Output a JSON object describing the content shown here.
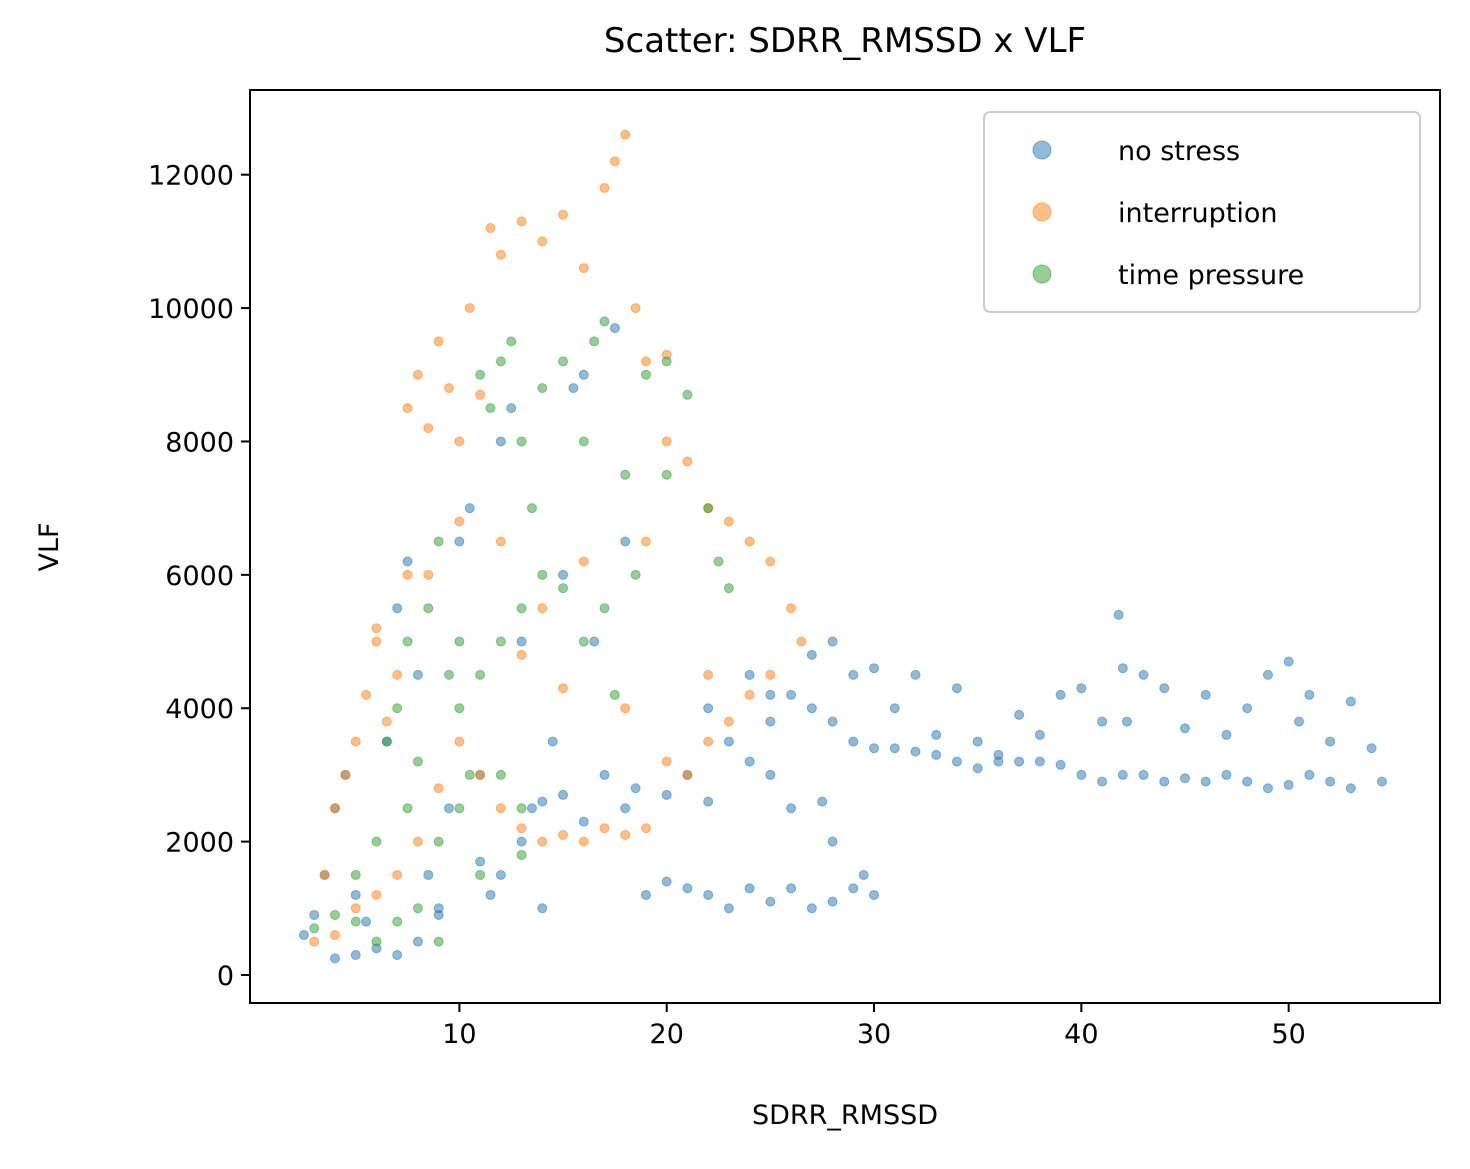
{
  "chart_data": {
    "type": "scatter",
    "title": "Scatter: SDRR_RMSSD x VLF",
    "x_label": "SDRR_RMSSD",
    "y_label": "VLF",
    "xlim": [
      -0.1,
      57.3
    ],
    "ylim": [
      -420,
      13270
    ],
    "xticks": [
      10,
      20,
      30,
      40,
      50
    ],
    "yticks": [
      0,
      2000,
      4000,
      6000,
      8000,
      10000,
      12000
    ],
    "legend": "upper right",
    "series": [
      {
        "name": "no stress",
        "color": "#1f77b4",
        "x": [
          2.5,
          3,
          3.5,
          4,
          4.5,
          5,
          5.5,
          6,
          6.5,
          7,
          7.5,
          8,
          8.5,
          9,
          9.5,
          10,
          10.5,
          11,
          11.5,
          12,
          12.5,
          13,
          13.5,
          14,
          14.5,
          15,
          15.5,
          16,
          16.5,
          17,
          17.5,
          18,
          18.5,
          19,
          20,
          21,
          21,
          22,
          23,
          24,
          25,
          26,
          27,
          28,
          29,
          30,
          29.5,
          28,
          27.5,
          26,
          25,
          24,
          23,
          22,
          25,
          27,
          28,
          29,
          30,
          31,
          32,
          33,
          34,
          35,
          36,
          37,
          38,
          39,
          40,
          41,
          41.8,
          42,
          42.2,
          43,
          44,
          45,
          46,
          47,
          48,
          49,
          50,
          50.5,
          51,
          52,
          53,
          54,
          54.5,
          53,
          52,
          51,
          50,
          49,
          48,
          47,
          46,
          45,
          44,
          43,
          42,
          41,
          40,
          39,
          38,
          37,
          36,
          35,
          34,
          33,
          32,
          31,
          30,
          29,
          28,
          27,
          26,
          25,
          24,
          22,
          20,
          18,
          16,
          15,
          14,
          13,
          12,
          11,
          9,
          8,
          7,
          5,
          4
        ],
        "values": [
          600,
          900,
          1500,
          2500,
          3000,
          1200,
          800,
          400,
          3500,
          5500,
          6200,
          4500,
          1500,
          900,
          2500,
          6500,
          7000,
          3000,
          1200,
          8000,
          8500,
          5000,
          2500,
          1000,
          3500,
          6000,
          8800,
          9000,
          5000,
          3000,
          9700,
          6500,
          2800,
          1200,
          1400,
          3000,
          1300,
          1200,
          1000,
          1300,
          1100,
          1300,
          1000,
          1100,
          1300,
          1200,
          1500,
          2000,
          2600,
          2500,
          3000,
          4500,
          3500,
          4000,
          4200,
          4800,
          5000,
          4500,
          4600,
          4000,
          4500,
          3600,
          4300,
          3500,
          3300,
          3900,
          3600,
          4200,
          4300,
          3800,
          5400,
          4600,
          3800,
          4500,
          4300,
          3700,
          4200,
          3600,
          4000,
          4500,
          4700,
          3800,
          4200,
          3500,
          4100,
          3400,
          2900,
          2800,
          2900,
          3000,
          2850,
          2800,
          2900,
          3000,
          2900,
          2950,
          2900,
          3000,
          3000,
          2900,
          3000,
          3150,
          3200,
          3200,
          3200,
          3100,
          3200,
          3300,
          3350,
          3400,
          3400,
          3500,
          3800,
          4000,
          4200,
          3800,
          3200,
          2600,
          2700,
          2500,
          2300,
          2700,
          2600,
          2000,
          1500,
          1700,
          1000,
          500,
          300,
          300,
          250
        ]
      },
      {
        "name": "interruption",
        "color": "#ff7f0e",
        "x": [
          3,
          3.5,
          4,
          4.5,
          5,
          5.5,
          6,
          6.5,
          7,
          7.5,
          7.5,
          8,
          8.5,
          9,
          9.5,
          10,
          10.5,
          11,
          11.5,
          12,
          13,
          14,
          15,
          16,
          17,
          17.5,
          18,
          18.5,
          19,
          20,
          20,
          21,
          22,
          23,
          24,
          25,
          26,
          26.5,
          25,
          24,
          23,
          22,
          21,
          20,
          19,
          18,
          17,
          16,
          15,
          14,
          13,
          12,
          11,
          10,
          9,
          8,
          7,
          6,
          5,
          4,
          6,
          12,
          14,
          16,
          18,
          22,
          15,
          13,
          8.5,
          10,
          19
        ],
        "values": [
          500,
          1500,
          2500,
          3000,
          3500,
          4200,
          5000,
          3800,
          4500,
          6000,
          8500,
          9000,
          8200,
          9500,
          8800,
          8000,
          10000,
          8700,
          11200,
          10800,
          11300,
          11000,
          11400,
          10600,
          11800,
          12200,
          12600,
          10000,
          9200,
          8000,
          9300,
          7700,
          7000,
          6800,
          6500,
          6200,
          5500,
          5000,
          4500,
          4200,
          3800,
          3500,
          3000,
          3200,
          2200,
          2100,
          2200,
          2000,
          2100,
          2000,
          2200,
          2500,
          3000,
          3500,
          2800,
          2000,
          1500,
          1200,
          1000,
          600,
          5200,
          6500,
          5500,
          6200,
          4000,
          4500,
          4300,
          4800,
          6000,
          6800,
          6500
        ]
      },
      {
        "name": "time pressure",
        "color": "#2ca02c",
        "x": [
          3,
          4,
          5,
          6,
          6.5,
          7,
          7.5,
          8,
          8.5,
          9,
          9.5,
          10,
          10.5,
          11,
          11.5,
          12,
          12.5,
          13,
          13.5,
          14,
          15,
          16,
          16.5,
          17,
          18,
          19,
          20,
          21,
          22,
          22.5,
          23,
          20,
          18.5,
          17,
          16,
          15,
          14,
          13,
          12,
          11,
          12,
          13,
          13,
          11,
          10,
          9,
          8,
          7,
          6,
          9,
          5,
          7.5,
          10,
          17.5
        ],
        "values": [
          700,
          900,
          1500,
          2000,
          3500,
          4000,
          5000,
          3200,
          5500,
          6500,
          4500,
          5000,
          3000,
          9000,
          8500,
          9200,
          9500,
          8000,
          7000,
          8800,
          9200,
          8000,
          9500,
          9800,
          7500,
          9000,
          9200,
          8700,
          7000,
          6200,
          5800,
          7500,
          6000,
          5500,
          5000,
          5800,
          6000,
          5500,
          5000,
          4500,
          3000,
          2500,
          1800,
          1500,
          2500,
          2000,
          1000,
          800,
          500,
          500,
          800,
          2500,
          4000,
          4200
        ]
      }
    ]
  }
}
